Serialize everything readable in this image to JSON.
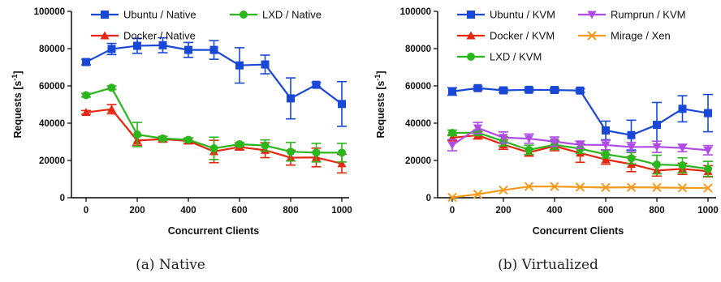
{
  "charts": [
    {
      "caption": "(a) Native",
      "legend_layout": "two-column",
      "chart_data": {
        "type": "line",
        "xlabel": "Concurrent Clients",
        "ylabel": "Requests [s⁻¹]",
        "xlim": [
          0,
          1000
        ],
        "ylim": [
          0,
          100000
        ],
        "xticks": [
          0,
          200,
          400,
          600,
          800,
          1000
        ],
        "xtick_labels": [
          "0",
          "200",
          "400",
          "600",
          "800",
          "1000"
        ],
        "yticks": [
          0,
          20000,
          40000,
          60000,
          80000,
          100000
        ],
        "ytick_labels": [
          "0",
          "20000",
          "40000",
          "60000",
          "80000",
          "100000"
        ],
        "grid": false,
        "legend_position": "top",
        "x": [
          0,
          100,
          200,
          300,
          400,
          500,
          600,
          700,
          800,
          900,
          1000
        ],
        "series": [
          {
            "name": "Ubuntu / Native",
            "color": "#1a48d6",
            "marker": "square",
            "values": [
              72800,
              79800,
              81500,
              81800,
              79300,
              79300,
              71000,
              71500,
              53300,
              60600,
              50300
            ],
            "errors": [
              1500,
              3000,
              4000,
              4000,
              4000,
              5000,
              9500,
              5000,
              11000,
              1200,
              12000
            ]
          },
          {
            "name": "Docker / Native",
            "color": "#e8260f",
            "marker": "triangle-up",
            "values": [
              45800,
              47500,
              30700,
              31400,
              30500,
              24800,
              27200,
              25500,
              21500,
              21600,
              18300
            ],
            "errors": [
              1000,
              2500,
              2500,
              1500,
              1500,
              6000,
              1500,
              4000,
              4000,
              5000,
              5000
            ]
          },
          {
            "name": "LXD / Native",
            "color": "#2bb61c",
            "marker": "circle",
            "values": [
              55000,
              59000,
              33900,
              31800,
              31100,
              26500,
              28700,
              28000,
              24700,
              24200,
              24200
            ],
            "errors": [
              1000,
              1000,
              6500,
              1000,
              1000,
              6000,
              1000,
              3000,
              5000,
              5000,
              5000
            ]
          }
        ]
      }
    },
    {
      "caption": "(b) Virtualized",
      "legend_layout": "two-column",
      "chart_data": {
        "type": "line",
        "xlabel": "Concurrent Clients",
        "ylabel": "Requests [s⁻¹]",
        "xlim": [
          0,
          1000
        ],
        "ylim": [
          0,
          100000
        ],
        "xticks": [
          0,
          200,
          400,
          600,
          800,
          1000
        ],
        "xtick_labels": [
          "0",
          "200",
          "400",
          "600",
          "800",
          "1000"
        ],
        "yticks": [
          0,
          20000,
          40000,
          60000,
          80000,
          100000
        ],
        "ytick_labels": [
          "0",
          "20000",
          "40000",
          "60000",
          "80000",
          "100000"
        ],
        "grid": false,
        "legend_position": "top",
        "x": [
          0,
          100,
          200,
          300,
          400,
          500,
          600,
          700,
          800,
          900,
          1000
        ],
        "series": [
          {
            "name": "Ubuntu / KVM",
            "color": "#1a48d6",
            "marker": "square",
            "values": [
              57000,
              58800,
              57600,
              57900,
              57800,
              57500,
              36100,
              33600,
              39100,
              47700,
              45400
            ],
            "errors": [
              2000,
              1000,
              1000,
              1000,
              1000,
              1000,
              5000,
              8000,
              12000,
              7000,
              10000
            ]
          },
          {
            "name": "Docker / KVM",
            "color": "#e8260f",
            "marker": "triangle-up",
            "values": [
              32200,
              33500,
              28500,
              24300,
              27700,
              24000,
              20500,
              18000,
              14600,
              15500,
              14200
            ],
            "errors": [
              1500,
              2000,
              2500,
              2000,
              2500,
              5000,
              2500,
              4000,
              3000,
              3000,
              3000
            ]
          },
          {
            "name": "LXD / KVM",
            "color": "#2bb61c",
            "marker": "circle",
            "values": [
              34800,
              34900,
              30300,
              25700,
              28400,
              26300,
              23300,
              21200,
              17800,
              17400,
              15500
            ],
            "errors": [
              1500,
              1500,
              2500,
              2500,
              2500,
              2500,
              2000,
              3000,
              5000,
              4000,
              4000
            ]
          },
          {
            "name": "Rumprun / KVM",
            "color": "#b14be6",
            "marker": "triangle-down",
            "values": [
              28200,
              37400,
              32300,
              31700,
              30100,
              28400,
              28300,
              27200,
              27300,
              26700,
              25500
            ],
            "errors": [
              3000,
              3000,
              3000,
              2500,
              2500,
              2000,
              2500,
              2500,
              3000,
              2000,
              2500
            ]
          },
          {
            "name": "Mirage / Xen",
            "color": "#f59a1c",
            "marker": "x",
            "values": [
              200,
              1900,
              4100,
              6000,
              6000,
              5700,
              5500,
              5600,
              5500,
              5300,
              5200
            ],
            "errors": [
              0,
              0,
              0,
              0,
              0,
              0,
              0,
              0,
              0,
              0,
              0
            ]
          }
        ]
      }
    }
  ]
}
